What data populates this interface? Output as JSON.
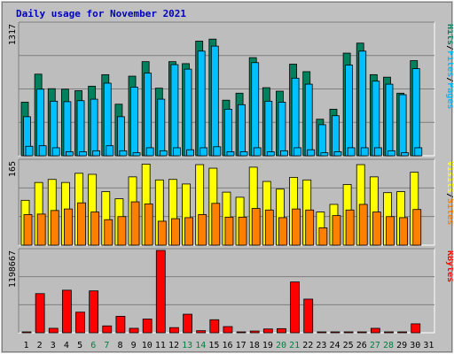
{
  "title": "Daily usage for November 2021",
  "colors": {
    "background": "#c0c0c0",
    "plot": "#bdbdbd",
    "grid": "#7f7f7f",
    "hits": "#00805c",
    "files": "#00c0ff",
    "visits": "#ffff00",
    "sites": "#ff8000",
    "kbytes": "#ff0000",
    "weekend": "#008040",
    "weekday": "#000000"
  },
  "chart_data": [
    {
      "type": "bar",
      "name": "pages-files-hits",
      "y_max_label": "1317",
      "ylim": [
        0,
        1317
      ],
      "side_label": {
        "parts": [
          "Pages",
          "/",
          "Files",
          "/",
          "Hits"
        ]
      },
      "categories": [
        "1",
        "2",
        "3",
        "4",
        "5",
        "6",
        "7",
        "8",
        "9",
        "10",
        "11",
        "12",
        "13",
        "14",
        "15",
        "16",
        "17",
        "18",
        "19",
        "20",
        "21",
        "22",
        "23",
        "24",
        "25",
        "26",
        "27",
        "28",
        "29",
        "30",
        "31"
      ],
      "series": [
        {
          "name": "Hits",
          "values": [
            535,
            815,
            670,
            665,
            650,
            695,
            810,
            515,
            795,
            940,
            675,
            940,
            920,
            1145,
            1165,
            555,
            625,
            980,
            680,
            645,
            915,
            840,
            365,
            465,
            1025,
            1125,
            810,
            785,
            625,
            950,
            0
          ]
        },
        {
          "name": "Files",
          "values": [
            390,
            665,
            545,
            540,
            550,
            565,
            725,
            390,
            685,
            825,
            565,
            910,
            865,
            1045,
            1095,
            465,
            510,
            930,
            545,
            535,
            775,
            715,
            310,
            400,
            905,
            1045,
            745,
            715,
            610,
            870,
            0
          ]
        },
        {
          "name": "Pages",
          "values": [
            95,
            100,
            80,
            40,
            40,
            50,
            100,
            50,
            30,
            80,
            50,
            80,
            60,
            80,
            90,
            40,
            40,
            80,
            40,
            50,
            80,
            60,
            30,
            40,
            80,
            80,
            80,
            50,
            30,
            80,
            0
          ]
        }
      ]
    },
    {
      "type": "bar",
      "name": "sites-visits",
      "y_max_label": "165",
      "ylim": [
        0,
        165
      ],
      "side_label": {
        "parts": [
          "Sites",
          "/",
          "Visits"
        ]
      },
      "categories": [
        "1",
        "2",
        "3",
        "4",
        "5",
        "6",
        "7",
        "8",
        "9",
        "10",
        "11",
        "12",
        "13",
        "14",
        "15",
        "16",
        "17",
        "18",
        "19",
        "20",
        "21",
        "22",
        "23",
        "24",
        "25",
        "26",
        "27",
        "28",
        "29",
        "30",
        "31"
      ],
      "series": [
        {
          "name": "Visits",
          "values": [
            88,
            123,
            129,
            123,
            141,
            139,
            105,
            91,
            134,
            159,
            128,
            129,
            120,
            158,
            151,
            104,
            94,
            153,
            125,
            110,
            133,
            128,
            65,
            80,
            119,
            158,
            134,
            103,
            105,
            143,
            0
          ]
        },
        {
          "name": "Sites",
          "values": [
            60,
            61,
            68,
            71,
            83,
            65,
            50,
            56,
            85,
            81,
            47,
            52,
            54,
            60,
            82,
            55,
            55,
            72,
            69,
            54,
            71,
            69,
            34,
            58,
            69,
            80,
            65,
            56,
            54,
            70,
            0
          ]
        }
      ]
    },
    {
      "type": "bar",
      "name": "kbytes",
      "y_max_label": "1198667",
      "ylim": [
        0,
        1198667
      ],
      "side_label": {
        "parts": [
          "KBytes"
        ]
      },
      "categories": [
        "1",
        "2",
        "3",
        "4",
        "5",
        "6",
        "7",
        "8",
        "9",
        "10",
        "11",
        "12",
        "13",
        "14",
        "15",
        "16",
        "17",
        "18",
        "19",
        "20",
        "21",
        "22",
        "23",
        "24",
        "25",
        "26",
        "27",
        "28",
        "29",
        "30",
        "31"
      ],
      "series": [
        {
          "name": "KBytes",
          "values": [
            12000,
            570000,
            65000,
            620000,
            300000,
            610000,
            100000,
            240000,
            65000,
            200000,
            1198667,
            75000,
            270000,
            30000,
            190000,
            90000,
            12000,
            25000,
            55000,
            60000,
            740000,
            490000,
            12000,
            12000,
            12000,
            12000,
            65000,
            12000,
            12000,
            130000,
            0
          ]
        }
      ]
    }
  ],
  "x_weekend_days": [
    6,
    7,
    13,
    14,
    20,
    21,
    27,
    28
  ]
}
